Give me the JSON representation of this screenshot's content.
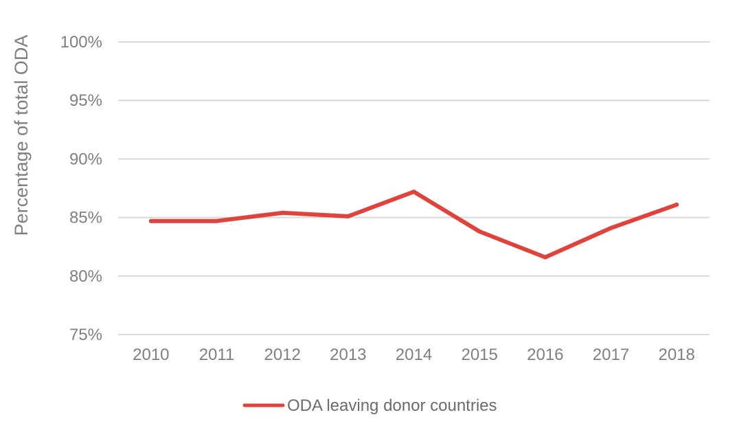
{
  "chart_data": {
    "type": "line",
    "title": "",
    "xlabel": "",
    "ylabel": "Percentage of total ODA",
    "categories": [
      "2010",
      "2011",
      "2012",
      "2013",
      "2014",
      "2015",
      "2016",
      "2017",
      "2018"
    ],
    "series": [
      {
        "name": "ODA leaving donor countries",
        "values": [
          84.7,
          84.7,
          85.4,
          85.1,
          87.2,
          83.8,
          81.6,
          84.1,
          86.1
        ],
        "color": "#e0433b"
      }
    ],
    "ylim": [
      75,
      100
    ],
    "yticks": [
      75,
      80,
      85,
      90,
      95,
      100
    ],
    "ytick_labels": [
      "75%",
      "80%",
      "85%",
      "90%",
      "95%",
      "100%"
    ],
    "grid": true,
    "gridline_color": "#d9d9d9",
    "legend_position": "bottom"
  }
}
